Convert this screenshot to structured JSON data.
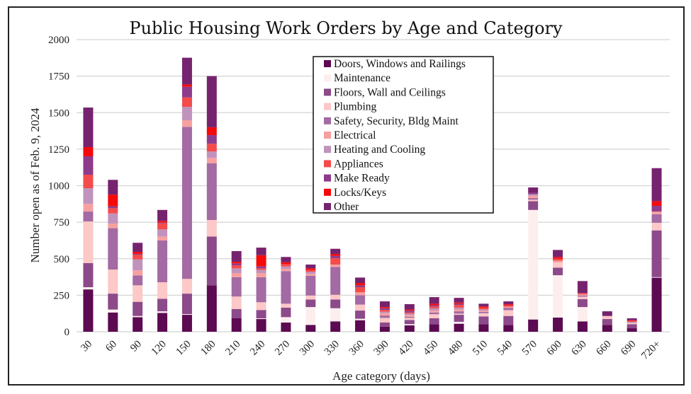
{
  "chart_data": {
    "type": "bar",
    "stacked": true,
    "title": "Public Housing Work Orders by Age and Category",
    "xlabel": "Age category (days)",
    "ylabel": "Number open as of Feb. 9, 2024",
    "ylim": [
      0,
      2000
    ],
    "yticks": [
      0,
      250,
      500,
      750,
      1000,
      1250,
      1500,
      1750,
      2000
    ],
    "ytick_labels": [
      "0",
      "250",
      "500",
      "750",
      "1000",
      "1250",
      "1500",
      "1750",
      "2000"
    ],
    "grid": true,
    "legend_position": "top-center",
    "categories": [
      "30",
      "60",
      "90",
      "120",
      "150",
      "180",
      "210",
      "240",
      "270",
      "300",
      "330",
      "360",
      "390",
      "420",
      "450",
      "480",
      "510",
      "540",
      "570",
      "600",
      "630",
      "660",
      "690",
      "720+"
    ],
    "series": [
      {
        "name": "Doors, Windows and Railings",
        "color": "#5c0a52",
        "values": [
          290,
          132,
          100,
          129,
          116,
          318,
          92,
          87,
          63,
          47,
          71,
          79,
          35,
          44,
          52,
          55,
          52,
          47,
          84,
          97,
          71,
          47,
          24,
          370
        ]
      },
      {
        "name": "Maintenance",
        "color": "#fdeeee",
        "values": [
          15,
          20,
          8,
          11,
          5,
          0,
          0,
          5,
          37,
          122,
          90,
          10,
          0,
          8,
          0,
          13,
          0,
          0,
          750,
          290,
          98,
          0,
          0,
          4
        ]
      },
      {
        "name": "Floors, Wall and Ceilings",
        "color": "#8c4a8a",
        "values": [
          165,
          109,
          97,
          86,
          140,
          334,
          64,
          57,
          65,
          52,
          60,
          56,
          29,
          29,
          40,
          48,
          53,
          61,
          60,
          52,
          55,
          40,
          28,
          320
        ]
      },
      {
        "name": "Plumbing",
        "color": "#fcc8c8",
        "values": [
          285,
          165,
          113,
          113,
          101,
          113,
          85,
          53,
          27,
          27,
          32,
          41,
          31,
          14,
          28,
          8,
          22,
          40,
          10,
          36,
          16,
          21,
          8,
          52
        ]
      },
      {
        "name": "Safety, Security, Bldg Maint",
        "color": "#a36aa3",
        "values": [
          68,
          283,
          68,
          286,
          1041,
          389,
          133,
          172,
          223,
          135,
          191,
          64,
          16,
          8,
          12,
          16,
          9,
          16,
          11,
          0,
          8,
          0,
          0,
          59
        ]
      },
      {
        "name": "Electrical",
        "color": "#f7a0a0",
        "values": [
          53,
          32,
          34,
          27,
          45,
          36,
          28,
          28,
          16,
          13,
          16,
          20,
          16,
          12,
          12,
          12,
          8,
          8,
          16,
          12,
          8,
          0,
          0,
          18
        ]
      },
      {
        "name": "Heating and Cooling",
        "color": "#c093bd",
        "values": [
          107,
          69,
          75,
          49,
          92,
          44,
          32,
          21,
          16,
          14,
          0,
          0,
          10,
          9,
          16,
          13,
          9,
          0,
          11,
          0,
          0,
          0,
          8,
          0
        ]
      },
      {
        "name": "Appliances",
        "color": "#f44b4b",
        "values": [
          92,
          36,
          33,
          41,
          64,
          53,
          21,
          11,
          16,
          13,
          44,
          35,
          12,
          8,
          13,
          19,
          12,
          8,
          0,
          13,
          9,
          0,
          6,
          0
        ]
      },
      {
        "name": "Make Ready",
        "color": "#8e3b8c",
        "values": [
          126,
          13,
          5,
          5,
          73,
          59,
          13,
          13,
          0,
          0,
          16,
          13,
          12,
          12,
          8,
          8,
          0,
          0,
          9,
          0,
          0,
          0,
          0,
          39
        ]
      },
      {
        "name": "Locks/Keys",
        "color": "#f50a0a",
        "values": [
          63,
          80,
          14,
          12,
          16,
          54,
          11,
          77,
          13,
          11,
          13,
          16,
          8,
          8,
          11,
          8,
          8,
          8,
          0,
          12,
          0,
          0,
          5,
          32
        ]
      },
      {
        "name": "Other",
        "color": "#76236f",
        "values": [
          271,
          101,
          62,
          75,
          183,
          350,
          73,
          52,
          36,
          26,
          35,
          37,
          39,
          37,
          45,
          32,
          19,
          20,
          37,
          48,
          82,
          32,
          13,
          226
        ]
      }
    ]
  }
}
